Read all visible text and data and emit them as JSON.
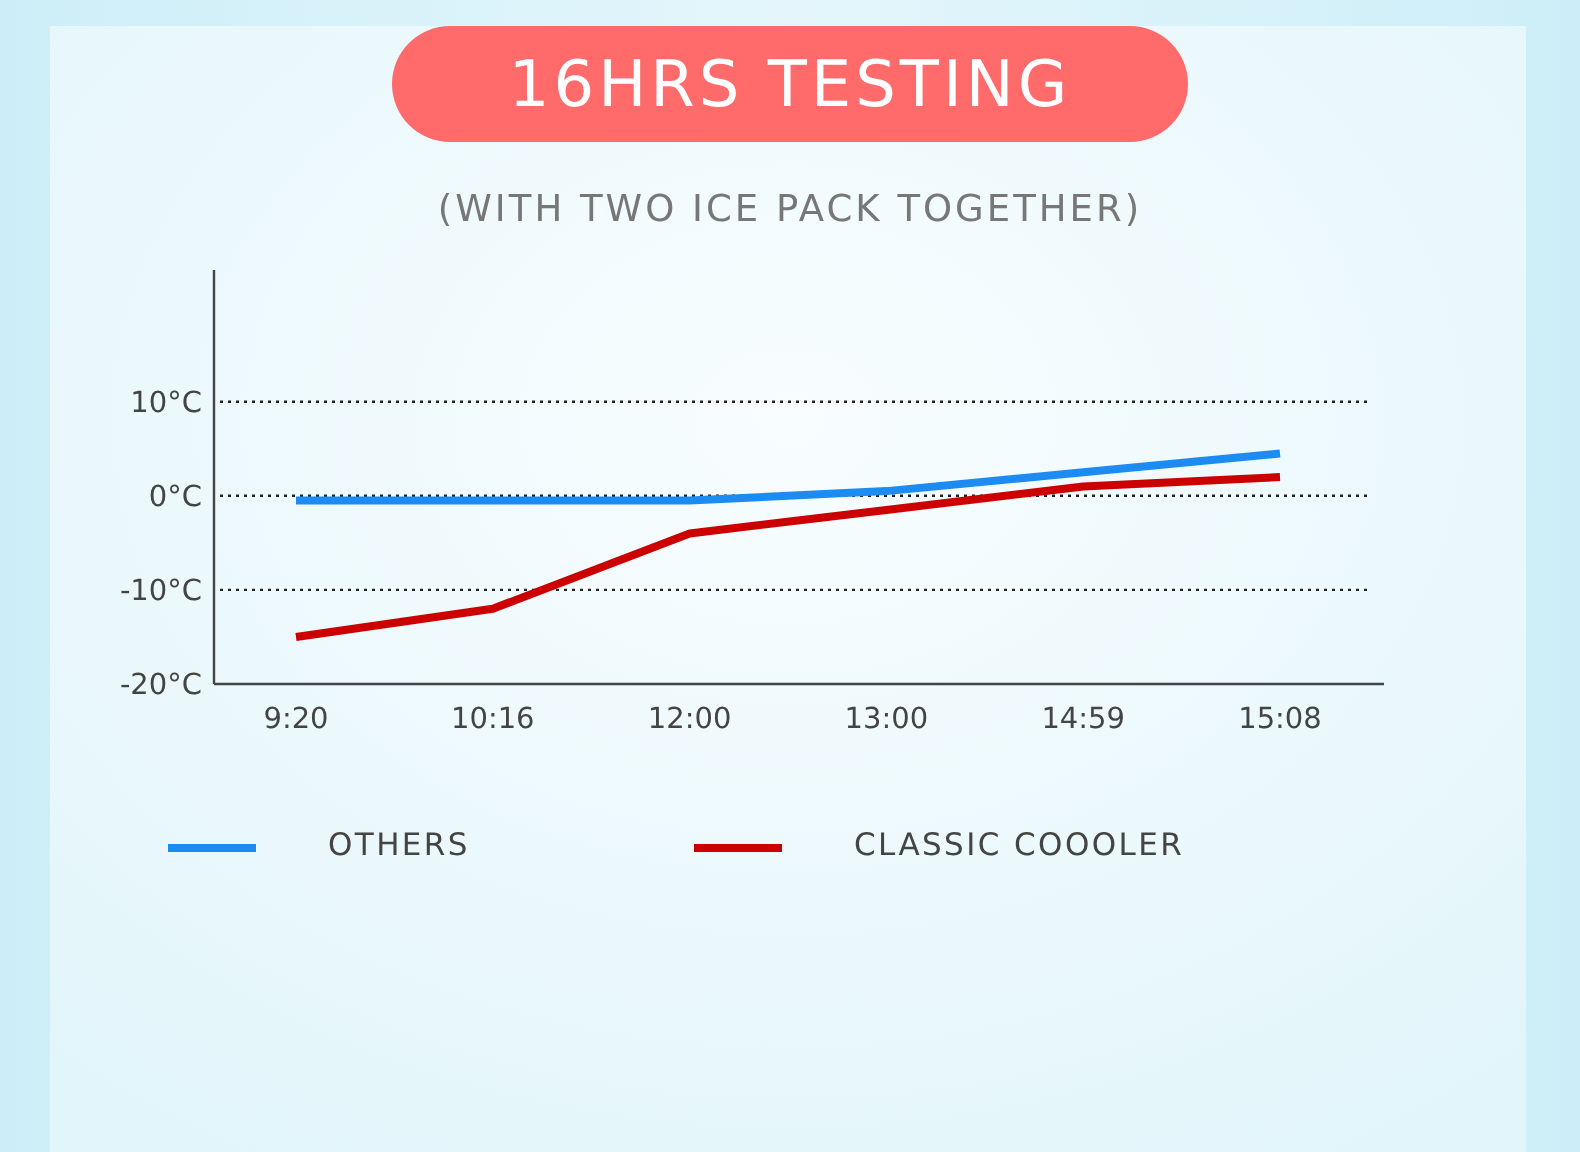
{
  "chart_data": {
    "type": "line",
    "title": "16HRS TESTING",
    "subtitle": "(WITH TWO ICE PACK TOGETHER)",
    "categories": [
      "9:20",
      "10:16",
      "12:00",
      "13:00",
      "14:59",
      "15:08"
    ],
    "series": [
      {
        "name": "OTHERS",
        "color": "#1c8cf2",
        "values": [
          -0.5,
          -0.5,
          -0.5,
          0.5,
          2.5,
          4.5
        ]
      },
      {
        "name": "CLASSIC COOOLER",
        "color": "#cc0000",
        "values": [
          -15,
          -12,
          -4,
          -1.5,
          1,
          2
        ]
      }
    ],
    "ylim": [
      -20,
      24
    ],
    "yticks": [
      {
        "value": -20,
        "label": "-20°C"
      },
      {
        "value": -10,
        "label": "-10°C"
      },
      {
        "value": 0,
        "label": "0°C"
      },
      {
        "value": 10,
        "label": "10°C"
      }
    ],
    "grid": "y",
    "legend": "bottom"
  }
}
